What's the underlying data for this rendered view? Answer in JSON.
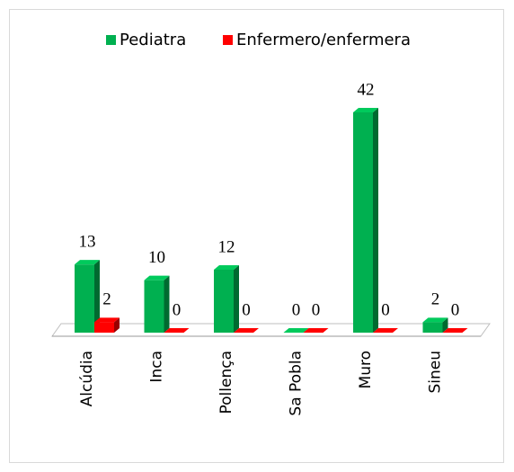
{
  "chart_data": {
    "type": "bar3d",
    "categories": [
      "Alcúdia",
      "Inca",
      "Pollença",
      "Sa Pobla",
      "Muro",
      "Sineu"
    ],
    "series": [
      {
        "name": "Pediatra",
        "color": "#00b050",
        "values": [
          13,
          10,
          12,
          0,
          42,
          2
        ]
      },
      {
        "name": "Enfermero/enfermera",
        "color": "#ff0000",
        "values": [
          2,
          0,
          0,
          0,
          0,
          0
        ]
      }
    ],
    "legend": "top"
  }
}
